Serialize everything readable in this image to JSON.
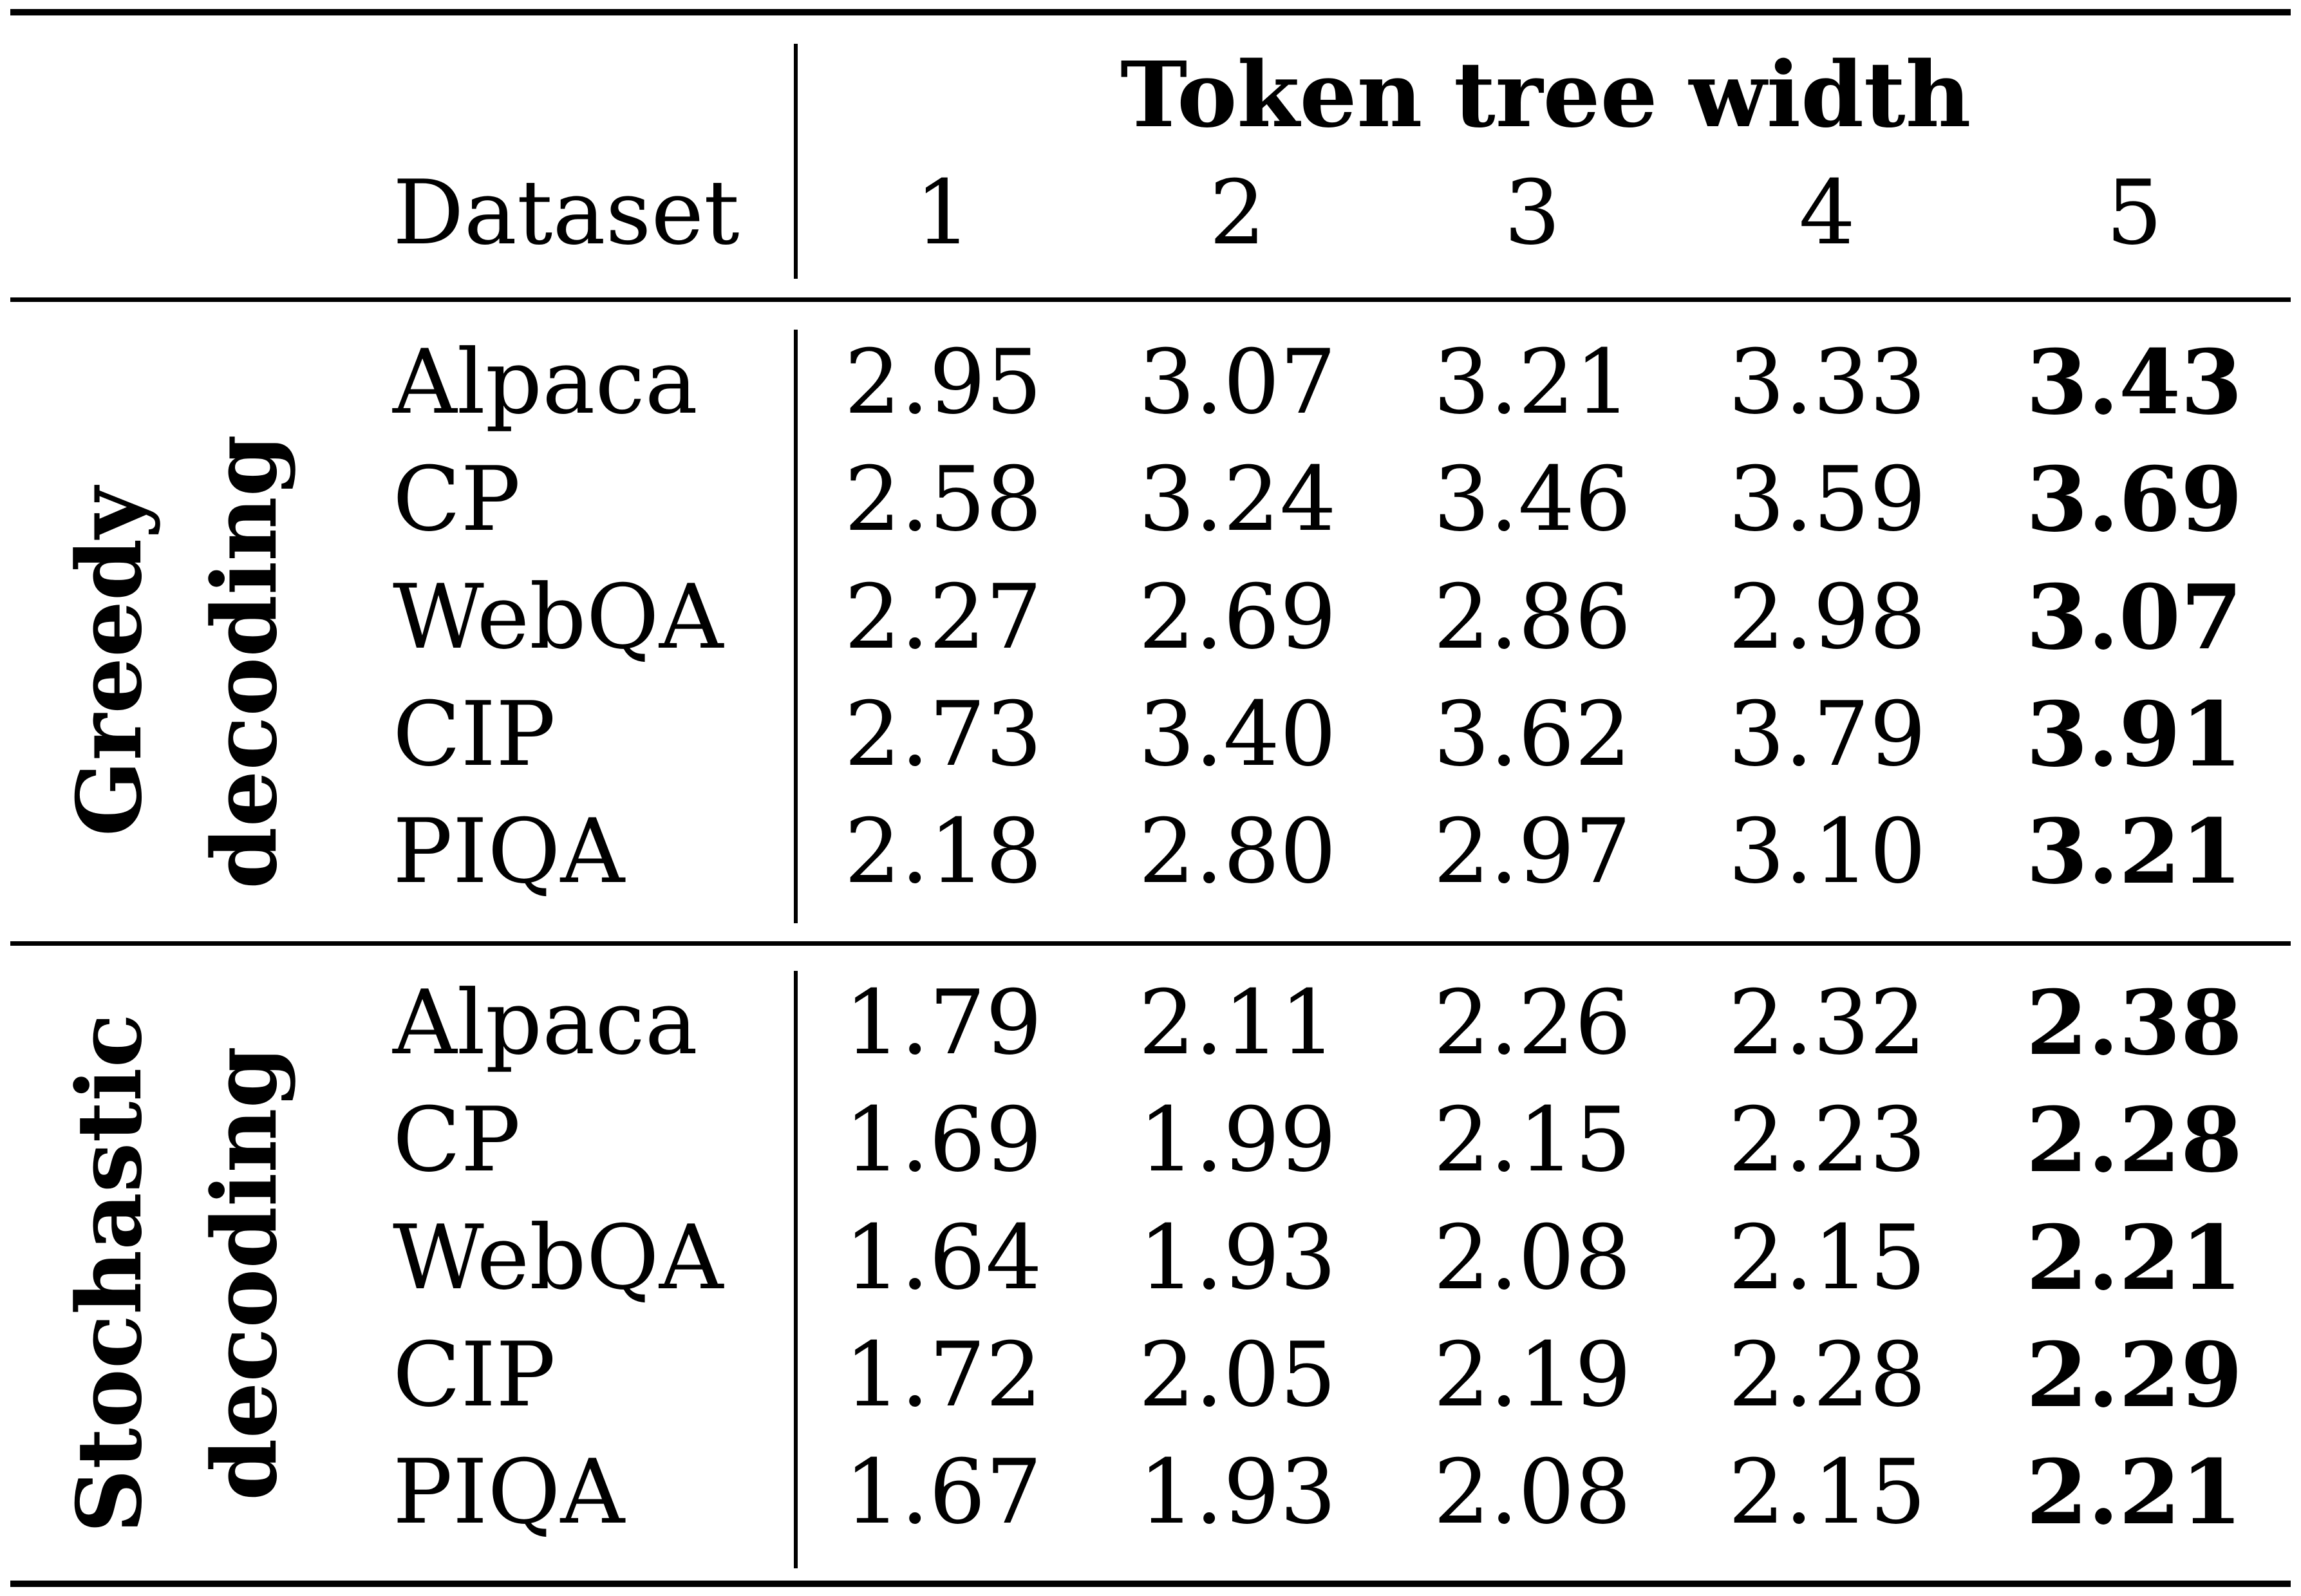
{
  "table": {
    "header": {
      "span_label": "Token tree width",
      "dataset_label": "Dataset",
      "widths": [
        "1",
        "2",
        "3",
        "4",
        "5"
      ]
    },
    "groups": [
      {
        "label_line1": "Greedy",
        "label_line2": "decoding",
        "rows": [
          {
            "dataset": "Alpaca",
            "values": [
              "2.95",
              "3.07",
              "3.21",
              "3.33",
              "3.43"
            ]
          },
          {
            "dataset": "CP",
            "values": [
              "2.58",
              "3.24",
              "3.46",
              "3.59",
              "3.69"
            ]
          },
          {
            "dataset": "WebQA",
            "values": [
              "2.27",
              "2.69",
              "2.86",
              "2.98",
              "3.07"
            ]
          },
          {
            "dataset": "CIP",
            "values": [
              "2.73",
              "3.40",
              "3.62",
              "3.79",
              "3.91"
            ]
          },
          {
            "dataset": "PIQA",
            "values": [
              "2.18",
              "2.80",
              "2.97",
              "3.10",
              "3.21"
            ]
          }
        ]
      },
      {
        "label_line1": "Stochastic",
        "label_line2": "decoding",
        "rows": [
          {
            "dataset": "Alpaca",
            "values": [
              "1.79",
              "2.11",
              "2.26",
              "2.32",
              "2.38"
            ]
          },
          {
            "dataset": "CP",
            "values": [
              "1.69",
              "1.99",
              "2.15",
              "2.23",
              "2.28"
            ]
          },
          {
            "dataset": "WebQA",
            "values": [
              "1.64",
              "1.93",
              "2.08",
              "2.15",
              "2.21"
            ]
          },
          {
            "dataset": "CIP",
            "values": [
              "1.72",
              "2.05",
              "2.19",
              "2.28",
              "2.29"
            ]
          },
          {
            "dataset": "PIQA",
            "values": [
              "1.67",
              "1.93",
              "2.08",
              "2.15",
              "2.21"
            ]
          }
        ]
      }
    ],
    "bold_column_index": 4
  }
}
